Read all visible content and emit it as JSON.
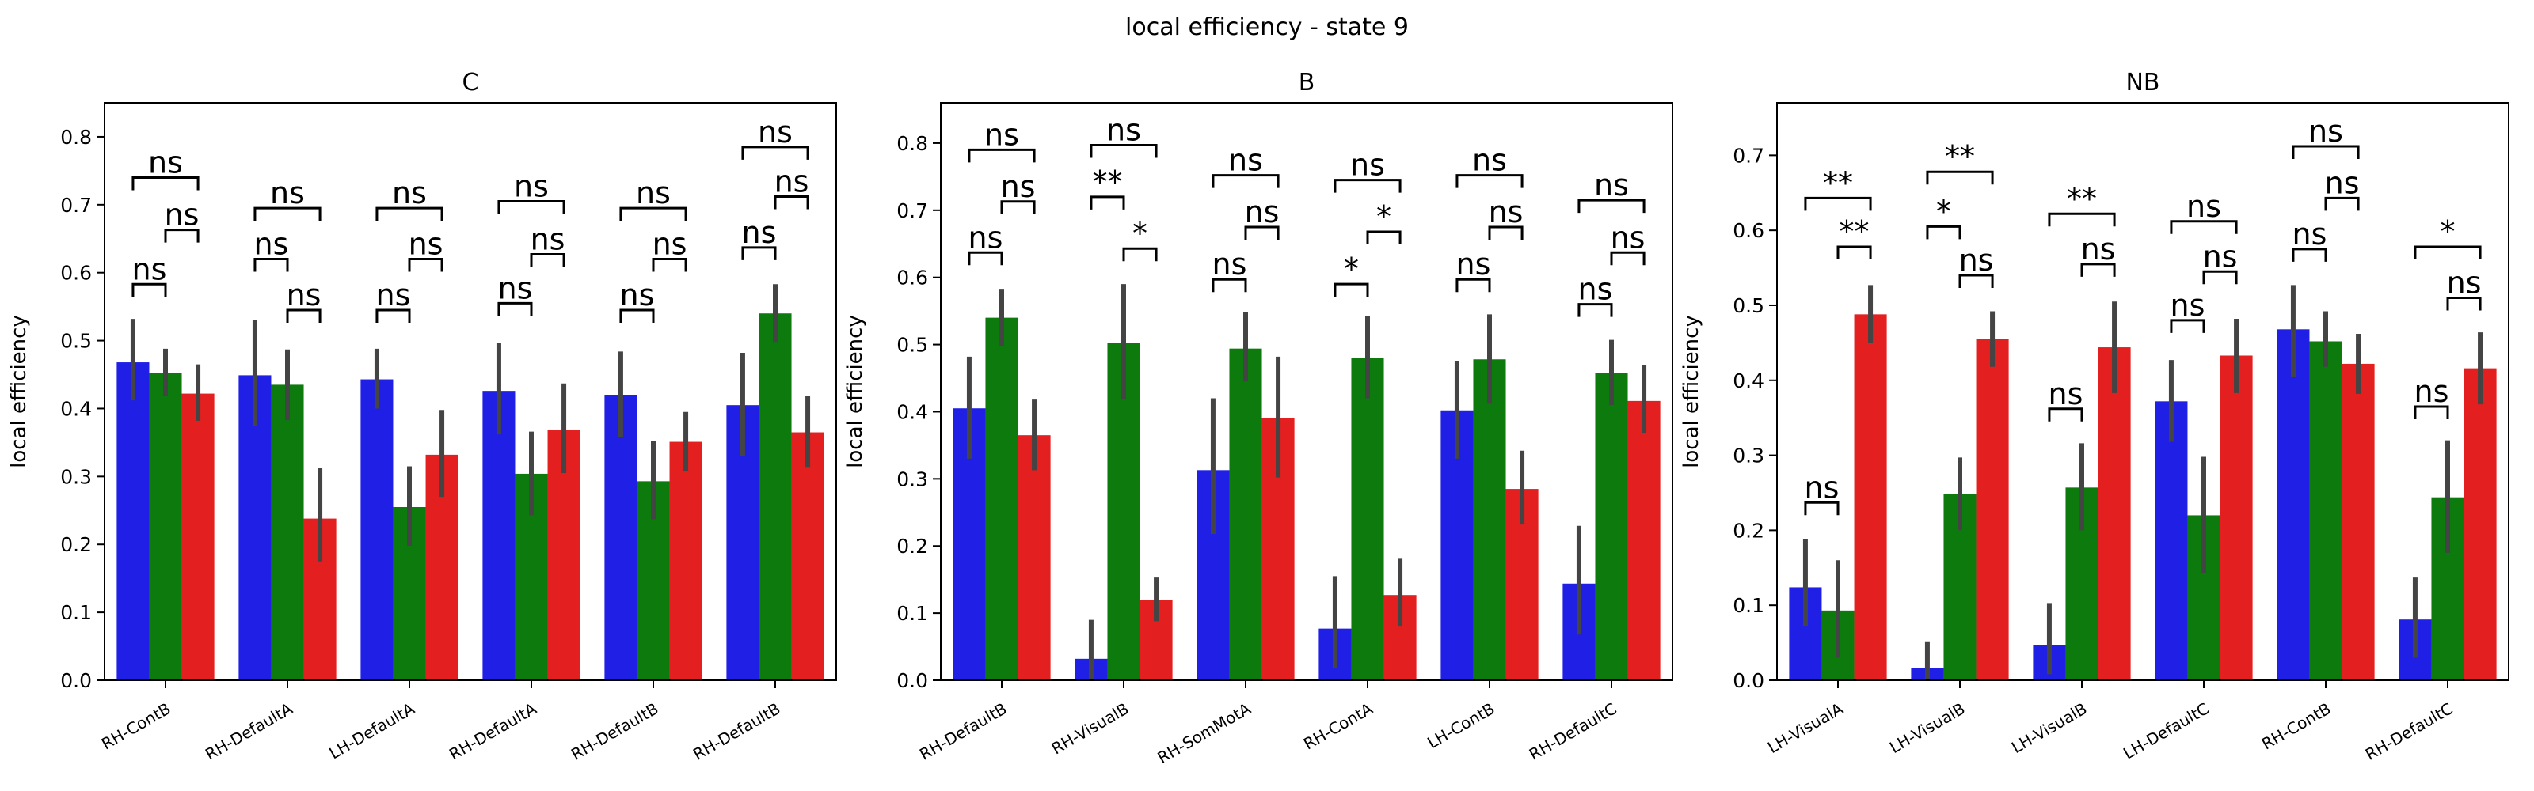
{
  "figure": {
    "suptitle": "local efficiency - state 9"
  },
  "colors": {
    "series": [
      "#1f1fe6",
      "#0d7a0d",
      "#e31f1f"
    ],
    "errorbar": "#444444",
    "bracket": "#000000"
  },
  "chart_data": [
    {
      "type": "bar",
      "title": "C",
      "ylabel": "local efficiency",
      "ylim": [
        0,
        0.85
      ],
      "yticks": [
        "0.0",
        "0.1",
        "0.2",
        "0.3",
        "0.4",
        "0.5",
        "0.6",
        "0.7",
        "0.8"
      ],
      "categories": [
        "RH-ContB",
        "RH-DefaultA",
        "LH-DefaultA",
        "RH-DefaultA",
        "RH-DefaultB",
        "RH-DefaultB"
      ],
      "values": [
        [
          0.468,
          0.452,
          0.422
        ],
        [
          0.449,
          0.435,
          0.238
        ],
        [
          0.443,
          0.255,
          0.332
        ],
        [
          0.426,
          0.304,
          0.368
        ],
        [
          0.42,
          0.293,
          0.351
        ],
        [
          0.405,
          0.54,
          0.365
        ]
      ],
      "errors": [
        [
          [
            0.412,
            0.532
          ],
          [
            0.418,
            0.488
          ],
          [
            0.382,
            0.465
          ]
        ],
        [
          [
            0.375,
            0.53
          ],
          [
            0.383,
            0.487
          ],
          [
            0.175,
            0.312
          ]
        ],
        [
          [
            0.4,
            0.488
          ],
          [
            0.198,
            0.315
          ],
          [
            0.27,
            0.398
          ]
        ],
        [
          [
            0.362,
            0.497
          ],
          [
            0.243,
            0.366
          ],
          [
            0.305,
            0.437
          ]
        ],
        [
          [
            0.358,
            0.484
          ],
          [
            0.237,
            0.352
          ],
          [
            0.308,
            0.395
          ]
        ],
        [
          [
            0.33,
            0.482
          ],
          [
            0.498,
            0.583
          ],
          [
            0.313,
            0.418
          ]
        ]
      ],
      "annotations": [
        {
          "x1": [
            0,
            0
          ],
          "x2": [
            0,
            1
          ],
          "y": 0.583,
          "label": "ns"
        },
        {
          "x1": [
            0,
            0
          ],
          "x2": [
            0,
            2
          ],
          "y": 0.74,
          "label": "ns"
        },
        {
          "x1": [
            0,
            1
          ],
          "x2": [
            0,
            2
          ],
          "y": 0.663,
          "label": "ns"
        },
        {
          "x1": [
            1,
            0
          ],
          "x2": [
            1,
            1
          ],
          "y": 0.62,
          "label": "ns"
        },
        {
          "x1": [
            1,
            0
          ],
          "x2": [
            1,
            2
          ],
          "y": 0.695,
          "label": "ns"
        },
        {
          "x1": [
            1,
            1
          ],
          "x2": [
            1,
            2
          ],
          "y": 0.545,
          "label": "ns"
        },
        {
          "x1": [
            2,
            0
          ],
          "x2": [
            2,
            1
          ],
          "y": 0.545,
          "label": "ns"
        },
        {
          "x1": [
            2,
            0
          ],
          "x2": [
            2,
            2
          ],
          "y": 0.695,
          "label": "ns"
        },
        {
          "x1": [
            2,
            1
          ],
          "x2": [
            2,
            2
          ],
          "y": 0.62,
          "label": "ns"
        },
        {
          "x1": [
            3,
            0
          ],
          "x2": [
            3,
            1
          ],
          "y": 0.555,
          "label": "ns"
        },
        {
          "x1": [
            3,
            0
          ],
          "x2": [
            3,
            2
          ],
          "y": 0.705,
          "label": "ns"
        },
        {
          "x1": [
            3,
            1
          ],
          "x2": [
            3,
            2
          ],
          "y": 0.627,
          "label": "ns"
        },
        {
          "x1": [
            4,
            0
          ],
          "x2": [
            4,
            1
          ],
          "y": 0.545,
          "label": "ns"
        },
        {
          "x1": [
            4,
            0
          ],
          "x2": [
            4,
            2
          ],
          "y": 0.695,
          "label": "ns"
        },
        {
          "x1": [
            4,
            1
          ],
          "x2": [
            4,
            2
          ],
          "y": 0.62,
          "label": "ns"
        },
        {
          "x1": [
            5,
            0
          ],
          "x2": [
            5,
            1
          ],
          "y": 0.637,
          "label": "ns"
        },
        {
          "x1": [
            5,
            0
          ],
          "x2": [
            5,
            2
          ],
          "y": 0.785,
          "label": "ns"
        },
        {
          "x1": [
            5,
            1
          ],
          "x2": [
            5,
            2
          ],
          "y": 0.712,
          "label": "ns"
        }
      ]
    },
    {
      "type": "bar",
      "title": "B",
      "ylabel": "local efficiency",
      "ylim": [
        0,
        0.86
      ],
      "yticks": [
        "0.0",
        "0.1",
        "0.2",
        "0.3",
        "0.4",
        "0.5",
        "0.6",
        "0.7",
        "0.8"
      ],
      "categories": [
        "RH-DefaultB",
        "RH-VisualB",
        "RH-SomMotA",
        "RH-ContA",
        "LH-ContB",
        "RH-DefaultC"
      ],
      "values": [
        [
          0.405,
          0.54,
          0.365
        ],
        [
          0.032,
          0.503,
          0.12
        ],
        [
          0.313,
          0.494,
          0.391
        ],
        [
          0.077,
          0.48,
          0.127
        ],
        [
          0.402,
          0.478,
          0.285
        ],
        [
          0.144,
          0.458,
          0.416
        ]
      ],
      "errors": [
        [
          [
            0.33,
            0.482
          ],
          [
            0.498,
            0.583
          ],
          [
            0.313,
            0.418
          ]
        ],
        [
          [
            0.0,
            0.09
          ],
          [
            0.418,
            0.59
          ],
          [
            0.088,
            0.153
          ]
        ],
        [
          [
            0.218,
            0.42
          ],
          [
            0.445,
            0.548
          ],
          [
            0.302,
            0.482
          ]
        ],
        [
          [
            0.018,
            0.155
          ],
          [
            0.42,
            0.543
          ],
          [
            0.08,
            0.181
          ]
        ],
        [
          [
            0.33,
            0.475
          ],
          [
            0.412,
            0.545
          ],
          [
            0.232,
            0.342
          ]
        ],
        [
          [
            0.068,
            0.23
          ],
          [
            0.41,
            0.507
          ],
          [
            0.368,
            0.47
          ]
        ]
      ],
      "annotations": [
        {
          "x1": [
            0,
            0
          ],
          "x2": [
            0,
            1
          ],
          "y": 0.637,
          "label": "ns"
        },
        {
          "x1": [
            0,
            0
          ],
          "x2": [
            0,
            2
          ],
          "y": 0.79,
          "label": "ns"
        },
        {
          "x1": [
            0,
            1
          ],
          "x2": [
            0,
            2
          ],
          "y": 0.713,
          "label": "ns"
        },
        {
          "x1": [
            1,
            0
          ],
          "x2": [
            1,
            1
          ],
          "y": 0.72,
          "label": "**"
        },
        {
          "x1": [
            1,
            0
          ],
          "x2": [
            1,
            2
          ],
          "y": 0.797,
          "label": "ns"
        },
        {
          "x1": [
            1,
            1
          ],
          "x2": [
            1,
            2
          ],
          "y": 0.643,
          "label": "*"
        },
        {
          "x1": [
            2,
            0
          ],
          "x2": [
            2,
            1
          ],
          "y": 0.597,
          "label": "ns"
        },
        {
          "x1": [
            2,
            0
          ],
          "x2": [
            2,
            2
          ],
          "y": 0.752,
          "label": "ns"
        },
        {
          "x1": [
            2,
            1
          ],
          "x2": [
            2,
            2
          ],
          "y": 0.675,
          "label": "ns"
        },
        {
          "x1": [
            3,
            0
          ],
          "x2": [
            3,
            1
          ],
          "y": 0.59,
          "label": "*"
        },
        {
          "x1": [
            3,
            0
          ],
          "x2": [
            3,
            2
          ],
          "y": 0.745,
          "label": "ns"
        },
        {
          "x1": [
            3,
            1
          ],
          "x2": [
            3,
            2
          ],
          "y": 0.668,
          "label": "*"
        },
        {
          "x1": [
            4,
            0
          ],
          "x2": [
            4,
            1
          ],
          "y": 0.597,
          "label": "ns"
        },
        {
          "x1": [
            4,
            0
          ],
          "x2": [
            4,
            2
          ],
          "y": 0.752,
          "label": "ns"
        },
        {
          "x1": [
            4,
            1
          ],
          "x2": [
            4,
            2
          ],
          "y": 0.675,
          "label": "ns"
        },
        {
          "x1": [
            5,
            0
          ],
          "x2": [
            5,
            1
          ],
          "y": 0.56,
          "label": "ns"
        },
        {
          "x1": [
            5,
            0
          ],
          "x2": [
            5,
            2
          ],
          "y": 0.715,
          "label": "ns"
        },
        {
          "x1": [
            5,
            1
          ],
          "x2": [
            5,
            2
          ],
          "y": 0.637,
          "label": "ns"
        }
      ]
    },
    {
      "type": "bar",
      "title": "NB",
      "ylabel": "local efficiency",
      "ylim": [
        0,
        0.77
      ],
      "yticks": [
        "0.0",
        "0.1",
        "0.2",
        "0.3",
        "0.4",
        "0.5",
        "0.6",
        "0.7"
      ],
      "categories": [
        "LH-VisualA",
        "LH-VisualB",
        "LH-VisualB",
        "LH-DefaultC",
        "RH-ContB",
        "RH-DefaultC"
      ],
      "values": [
        [
          0.124,
          0.093,
          0.488
        ],
        [
          0.016,
          0.248,
          0.455
        ],
        [
          0.047,
          0.257,
          0.444
        ],
        [
          0.372,
          0.22,
          0.433
        ],
        [
          0.468,
          0.452,
          0.422
        ],
        [
          0.081,
          0.244,
          0.416
        ]
      ],
      "errors": [
        [
          [
            0.072,
            0.188
          ],
          [
            0.03,
            0.16
          ],
          [
            0.45,
            0.527
          ]
        ],
        [
          [
            0.0,
            0.052
          ],
          [
            0.2,
            0.297
          ],
          [
            0.418,
            0.492
          ]
        ],
        [
          [
            0.008,
            0.103
          ],
          [
            0.2,
            0.316
          ],
          [
            0.383,
            0.505
          ]
        ],
        [
          [
            0.318,
            0.427
          ],
          [
            0.143,
            0.298
          ],
          [
            0.383,
            0.482
          ]
        ],
        [
          [
            0.405,
            0.527
          ],
          [
            0.418,
            0.492
          ],
          [
            0.382,
            0.462
          ]
        ],
        [
          [
            0.03,
            0.137
          ],
          [
            0.17,
            0.32
          ],
          [
            0.368,
            0.464
          ]
        ]
      ],
      "annotations": [
        {
          "x1": [
            0,
            0
          ],
          "x2": [
            0,
            1
          ],
          "y": 0.237,
          "label": "ns"
        },
        {
          "x1": [
            0,
            0
          ],
          "x2": [
            0,
            2
          ],
          "y": 0.643,
          "label": "**"
        },
        {
          "x1": [
            0,
            1
          ],
          "x2": [
            0,
            2
          ],
          "y": 0.578,
          "label": "**"
        },
        {
          "x1": [
            1,
            0
          ],
          "x2": [
            1,
            1
          ],
          "y": 0.605,
          "label": "*"
        },
        {
          "x1": [
            1,
            0
          ],
          "x2": [
            1,
            2
          ],
          "y": 0.678,
          "label": "**"
        },
        {
          "x1": [
            1,
            1
          ],
          "x2": [
            1,
            2
          ],
          "y": 0.54,
          "label": "ns"
        },
        {
          "x1": [
            2,
            0
          ],
          "x2": [
            2,
            1
          ],
          "y": 0.362,
          "label": "ns"
        },
        {
          "x1": [
            2,
            0
          ],
          "x2": [
            2,
            2
          ],
          "y": 0.622,
          "label": "**"
        },
        {
          "x1": [
            2,
            1
          ],
          "x2": [
            2,
            2
          ],
          "y": 0.555,
          "label": "ns"
        },
        {
          "x1": [
            3,
            0
          ],
          "x2": [
            3,
            1
          ],
          "y": 0.48,
          "label": "ns"
        },
        {
          "x1": [
            3,
            0
          ],
          "x2": [
            3,
            2
          ],
          "y": 0.612,
          "label": "ns"
        },
        {
          "x1": [
            3,
            1
          ],
          "x2": [
            3,
            2
          ],
          "y": 0.545,
          "label": "ns"
        },
        {
          "x1": [
            4,
            0
          ],
          "x2": [
            4,
            1
          ],
          "y": 0.575,
          "label": "ns"
        },
        {
          "x1": [
            4,
            0
          ],
          "x2": [
            4,
            2
          ],
          "y": 0.712,
          "label": "ns"
        },
        {
          "x1": [
            4,
            1
          ],
          "x2": [
            4,
            2
          ],
          "y": 0.643,
          "label": "ns"
        },
        {
          "x1": [
            5,
            0
          ],
          "x2": [
            5,
            1
          ],
          "y": 0.365,
          "label": "ns"
        },
        {
          "x1": [
            5,
            0
          ],
          "x2": [
            5,
            2
          ],
          "y": 0.578,
          "label": "*"
        },
        {
          "x1": [
            5,
            1
          ],
          "x2": [
            5,
            2
          ],
          "y": 0.51,
          "label": "ns"
        }
      ]
    }
  ]
}
